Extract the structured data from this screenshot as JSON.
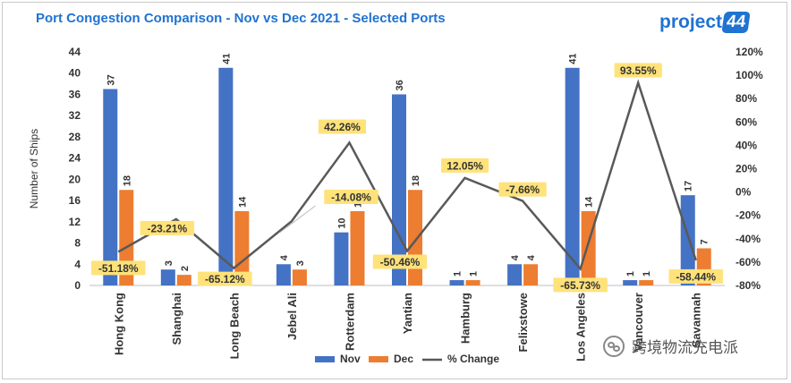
{
  "header": {
    "title": "Port Congestion Comparison - Nov vs Dec 2021 - Selected Ports",
    "logo_text": "project",
    "logo_badge": "44"
  },
  "watermark": {
    "text": "跨境物流充电派"
  },
  "chart_data": {
    "type": "bar",
    "title": "Port Congestion Comparison - Nov vs Dec 2021 - Selected Ports",
    "categories": [
      "Hong Kong",
      "Shanghai",
      "Long Beach",
      "Jebel Ali",
      "Rotterdam",
      "Yantian",
      "Hamburg",
      "Felixstowe",
      "Los Angeles",
      "Vancouver",
      "Savannah"
    ],
    "series": [
      {
        "name": "Nov",
        "kind": "bar",
        "axis": "left",
        "color": "#4472c4",
        "values": [
          37,
          3,
          41,
          4,
          10,
          36,
          1,
          4,
          41,
          1,
          17
        ]
      },
      {
        "name": "Dec",
        "kind": "bar",
        "axis": "left",
        "color": "#ed7d31",
        "values": [
          18,
          2,
          14,
          3,
          14,
          18,
          1,
          4,
          14,
          1,
          7
        ]
      },
      {
        "name": "% Change",
        "kind": "line",
        "axis": "right",
        "color": "#595959",
        "values": [
          -51.18,
          -23.21,
          -65.12,
          -25.0,
          42.26,
          -50.46,
          12.05,
          -7.66,
          -65.73,
          93.55,
          -58.44
        ]
      }
    ],
    "pct_labels": [
      "-51.18%",
      "-23.21%",
      "-65.12%",
      "",
      "42.26%",
      "-50.46%",
      "12.05%",
      "-7.66%",
      "-65.73%",
      "93.55%",
      "-58.44%"
    ],
    "annotation_extra": "-14.08%",
    "ylabel": "Number of Ships",
    "ylim": [
      0,
      44
    ],
    "yticks": [
      0,
      4,
      8,
      12,
      16,
      20,
      24,
      28,
      32,
      36,
      40,
      44
    ],
    "y2lim": [
      -80,
      120
    ],
    "y2ticks": [
      "-80%",
      "-60%",
      "-40%",
      "-20%",
      "0%",
      "20%",
      "40%",
      "60%",
      "80%",
      "100%",
      "120%"
    ],
    "grid": false,
    "legend": "bottom-center",
    "legend_labels": [
      "Nov",
      "Dec",
      "% Change"
    ]
  }
}
